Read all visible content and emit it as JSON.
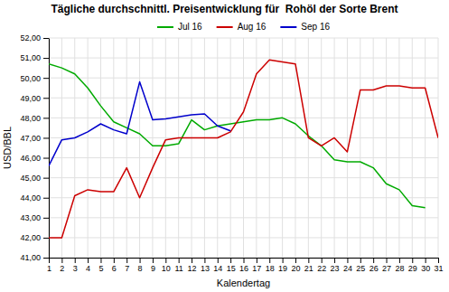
{
  "chart_data": {
    "type": "line",
    "title": "Tägliche durchschnittl. Preisentwicklung für  Rohöl der Sorte Brent",
    "x_label": "Kalendertag",
    "y_label": "USD/BBL",
    "x": [
      1,
      2,
      3,
      4,
      5,
      6,
      7,
      8,
      9,
      10,
      11,
      12,
      13,
      14,
      15,
      16,
      17,
      18,
      19,
      20,
      21,
      22,
      23,
      24,
      25,
      26,
      27,
      28,
      29,
      30,
      31
    ],
    "series": [
      {
        "name": "Jul 16",
        "color": "#00AA00",
        "values": [
          50.7,
          50.5,
          50.2,
          49.5,
          48.6,
          47.8,
          47.5,
          47.2,
          46.6,
          46.6,
          46.7,
          47.9,
          47.4,
          47.6,
          47.7,
          47.8,
          47.9,
          47.9,
          48.0,
          47.7,
          47.1,
          46.6,
          45.9,
          45.8,
          45.8,
          45.5,
          44.7,
          44.4,
          43.6,
          43.5,
          null
        ]
      },
      {
        "name": "Aug 16",
        "color": "#CC0000",
        "values": [
          42.0,
          42.0,
          44.1,
          44.4,
          44.3,
          44.3,
          45.5,
          44.0,
          45.5,
          46.9,
          47.0,
          47.0,
          47.0,
          47.0,
          47.3,
          48.3,
          50.2,
          50.9,
          50.8,
          50.7,
          47.0,
          46.6,
          47.0,
          46.3,
          49.4,
          49.4,
          49.6,
          49.6,
          49.5,
          49.5,
          47.0
        ]
      },
      {
        "name": "Sep 16",
        "color": "#0000CC",
        "values": [
          45.6,
          46.9,
          47.0,
          47.3,
          47.7,
          47.4,
          47.2,
          49.8,
          47.9,
          47.95,
          48.05,
          48.15,
          48.2,
          47.6,
          47.35,
          null,
          null,
          null,
          null,
          null,
          null,
          null,
          null,
          null,
          null,
          null,
          null,
          null,
          null,
          null,
          null
        ]
      }
    ],
    "xlim": [
      1,
      31
    ],
    "xticks": [
      1,
      2,
      3,
      4,
      5,
      6,
      7,
      8,
      9,
      10,
      11,
      12,
      13,
      14,
      15,
      16,
      17,
      18,
      19,
      20,
      21,
      22,
      23,
      24,
      25,
      26,
      27,
      28,
      29,
      30,
      31
    ],
    "ylim": [
      41.0,
      52.0
    ],
    "yticks": [
      {
        "value": 41.0,
        "label": "41,00"
      },
      {
        "value": 42.0,
        "label": "42,00"
      },
      {
        "value": 43.0,
        "label": "43,00"
      },
      {
        "value": 44.0,
        "label": "44,00"
      },
      {
        "value": 45.0,
        "label": "45,00"
      },
      {
        "value": 46.0,
        "label": "46,00"
      },
      {
        "value": 47.0,
        "label": "47,00"
      },
      {
        "value": 48.0,
        "label": "48,00"
      },
      {
        "value": 49.0,
        "label": "49,00"
      },
      {
        "value": 50.0,
        "label": "50,00"
      },
      {
        "value": 51.0,
        "label": "51,00"
      },
      {
        "value": 52.0,
        "label": "52,00"
      }
    ],
    "grid": true,
    "legend": "top"
  }
}
